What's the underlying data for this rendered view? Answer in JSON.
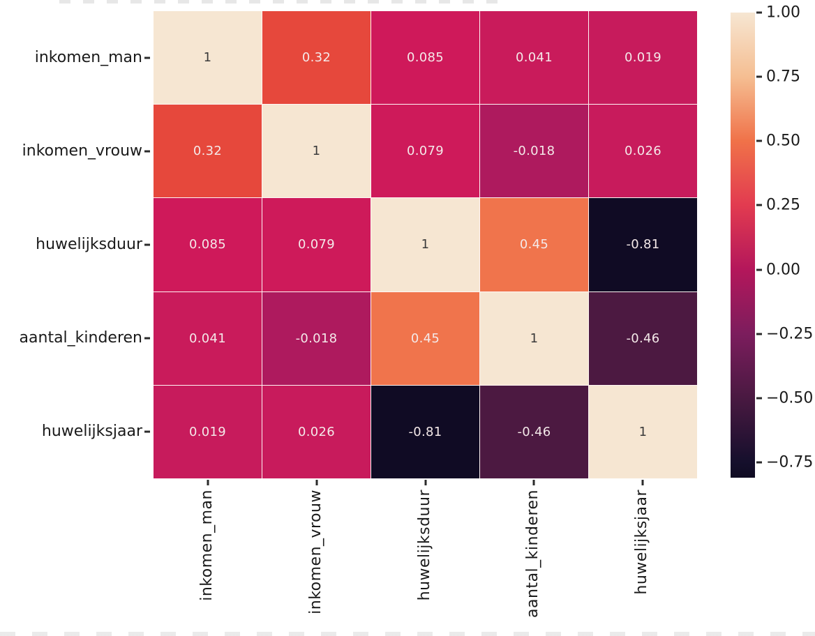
{
  "chart_data": {
    "type": "heatmap",
    "title": "",
    "xlabel": "",
    "ylabel": "",
    "categories": [
      "inkomen_man",
      "inkomen_vrouw",
      "huwelijksduur",
      "aantal_kinderen",
      "huwelijksjaar"
    ],
    "matrix": [
      [
        1,
        0.32,
        0.085,
        0.041,
        0.019
      ],
      [
        0.32,
        1,
        0.079,
        -0.018,
        0.026
      ],
      [
        0.085,
        0.079,
        1,
        0.45,
        -0.81
      ],
      [
        0.041,
        -0.018,
        0.45,
        1,
        -0.46
      ],
      [
        0.019,
        0.026,
        -0.81,
        -0.46,
        1
      ]
    ],
    "cell_labels": [
      [
        "1",
        "0.32",
        "0.085",
        "0.041",
        "0.019"
      ],
      [
        "0.32",
        "1",
        "0.079",
        "-0.018",
        "0.026"
      ],
      [
        "0.085",
        "0.079",
        "1",
        "0.45",
        "-0.81"
      ],
      [
        "0.041",
        "-0.018",
        "0.45",
        "1",
        "-0.46"
      ],
      [
        "0.019",
        "0.026",
        "-0.81",
        "-0.46",
        "1"
      ]
    ],
    "cell_colors": [
      [
        "#F6E6D2",
        "#E6483C",
        "#CF195A",
        "#C91B5B",
        "#C71B5C"
      ],
      [
        "#E6483C",
        "#F6E6D2",
        "#CE1A5A",
        "#AE1A5E",
        "#C81B5C"
      ],
      [
        "#CF195A",
        "#CE1A5A",
        "#F6E6D2",
        "#F0744C",
        "#100B24"
      ],
      [
        "#C91B5B",
        "#AE1A5E",
        "#F0744C",
        "#F6E6D2",
        "#4C1941"
      ],
      [
        "#C71B5C",
        "#C81B5C",
        "#100B24",
        "#4C1941",
        "#F6E6D2"
      ]
    ],
    "cell_text_colors": [
      [
        "#3A3A3A",
        "#F4E9E9",
        "#F4E9E9",
        "#F4E9E9",
        "#F4E9E9"
      ],
      [
        "#F4E9E9",
        "#3A3A3A",
        "#F4E9E9",
        "#F4E9E9",
        "#F4E9E9"
      ],
      [
        "#F4E9E9",
        "#F4E9E9",
        "#3A3A3A",
        "#F4E9E9",
        "#F4E9E9"
      ],
      [
        "#F4E9E9",
        "#F4E9E9",
        "#F4E9E9",
        "#3A3A3A",
        "#F4E9E9"
      ],
      [
        "#F4E9E9",
        "#F4E9E9",
        "#F4E9E9",
        "#F4E9E9",
        "#3A3A3A"
      ]
    ],
    "colormap": "rocket",
    "colorbar": {
      "vmin": -0.81,
      "vmax": 1.0,
      "ticks": [
        {
          "label": "1.00",
          "value": 1.0
        },
        {
          "label": "0.75",
          "value": 0.75
        },
        {
          "label": "0.50",
          "value": 0.5
        },
        {
          "label": "0.25",
          "value": 0.25
        },
        {
          "label": "0.00",
          "value": 0.0
        },
        {
          "label": "−0.25",
          "value": -0.25
        },
        {
          "label": "−0.50",
          "value": -0.5
        },
        {
          "label": "−0.75",
          "value": -0.75
        }
      ],
      "gradient_stops": [
        {
          "pos": 0,
          "color": "#F6E6D2"
        },
        {
          "pos": 13.8,
          "color": "#F5BE92"
        },
        {
          "pos": 27.6,
          "color": "#F07249"
        },
        {
          "pos": 41.4,
          "color": "#E23B50"
        },
        {
          "pos": 55.2,
          "color": "#B4175B"
        },
        {
          "pos": 69.1,
          "color": "#7C1D5D"
        },
        {
          "pos": 82.9,
          "color": "#491941"
        },
        {
          "pos": 96.7,
          "color": "#150F2C"
        },
        {
          "pos": 100,
          "color": "#0F0B22"
        }
      ]
    },
    "grid_line_color": "#FBEFEA",
    "legend_position": "right-colorbar",
    "axis_tick_color": "#2B2B2B",
    "label_color": "#1A1A1A"
  }
}
